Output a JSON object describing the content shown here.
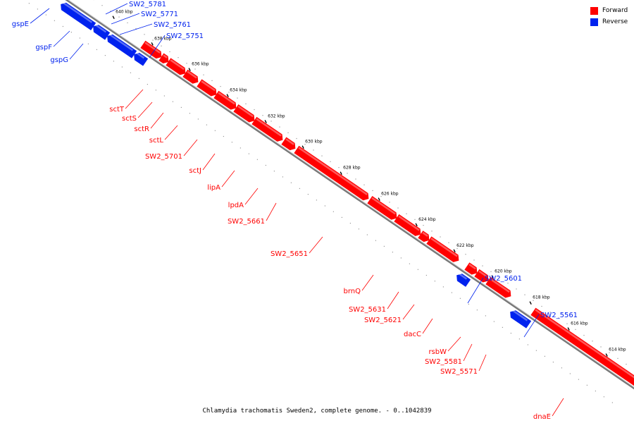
{
  "colors": {
    "forward": "#ff0000",
    "reverse": "#0022ee",
    "backbone": "#999999"
  },
  "legend": [
    {
      "label": "Forward",
      "color": "#ff0000"
    },
    {
      "label": "Reverse",
      "color": "#0022ee"
    }
  ],
  "caption": "Chlamydia trachomatis Sweden2, complete genome. - 0..1042839",
  "ticks": [
    "640 kbp",
    "638 kbp",
    "636 kbp",
    "634 kbp",
    "632 kbp",
    "630 kbp",
    "628 kbp",
    "626 kbp",
    "624 kbp",
    "622 kbp",
    "620 kbp",
    "618 kbp",
    "616 kbp",
    "614 kbp"
  ],
  "genes": [
    {
      "label": "gspE",
      "strand": "reverse"
    },
    {
      "label": "gspF",
      "strand": "reverse"
    },
    {
      "label": "gspG",
      "strand": "reverse"
    },
    {
      "label": "SW2_5781",
      "strand": "reverse"
    },
    {
      "label": "SW2_5771",
      "strand": "reverse"
    },
    {
      "label": "SW2_5761",
      "strand": "reverse"
    },
    {
      "label": "SW2_5751",
      "strand": "reverse"
    },
    {
      "label": "sctT",
      "strand": "forward"
    },
    {
      "label": "sctS",
      "strand": "forward"
    },
    {
      "label": "sctR",
      "strand": "forward"
    },
    {
      "label": "sctL",
      "strand": "forward"
    },
    {
      "label": "SW2_5701",
      "strand": "forward"
    },
    {
      "label": "sctJ",
      "strand": "forward"
    },
    {
      "label": "lipA",
      "strand": "forward"
    },
    {
      "label": "lpdA",
      "strand": "forward"
    },
    {
      "label": "SW2_5661",
      "strand": "forward"
    },
    {
      "label": "SW2_5651",
      "strand": "forward"
    },
    {
      "label": "brnQ",
      "strand": "forward"
    },
    {
      "label": "SW2_5631",
      "strand": "forward"
    },
    {
      "label": "SW2_5621",
      "strand": "forward"
    },
    {
      "label": "dacC",
      "strand": "forward"
    },
    {
      "label": "SW2_5601",
      "strand": "reverse"
    },
    {
      "label": "rsbW",
      "strand": "forward"
    },
    {
      "label": "SW2_5581",
      "strand": "forward"
    },
    {
      "label": "SW2_5571",
      "strand": "forward"
    },
    {
      "label": "SW2_5561",
      "strand": "reverse"
    },
    {
      "label": "dnaE",
      "strand": "forward"
    }
  ]
}
